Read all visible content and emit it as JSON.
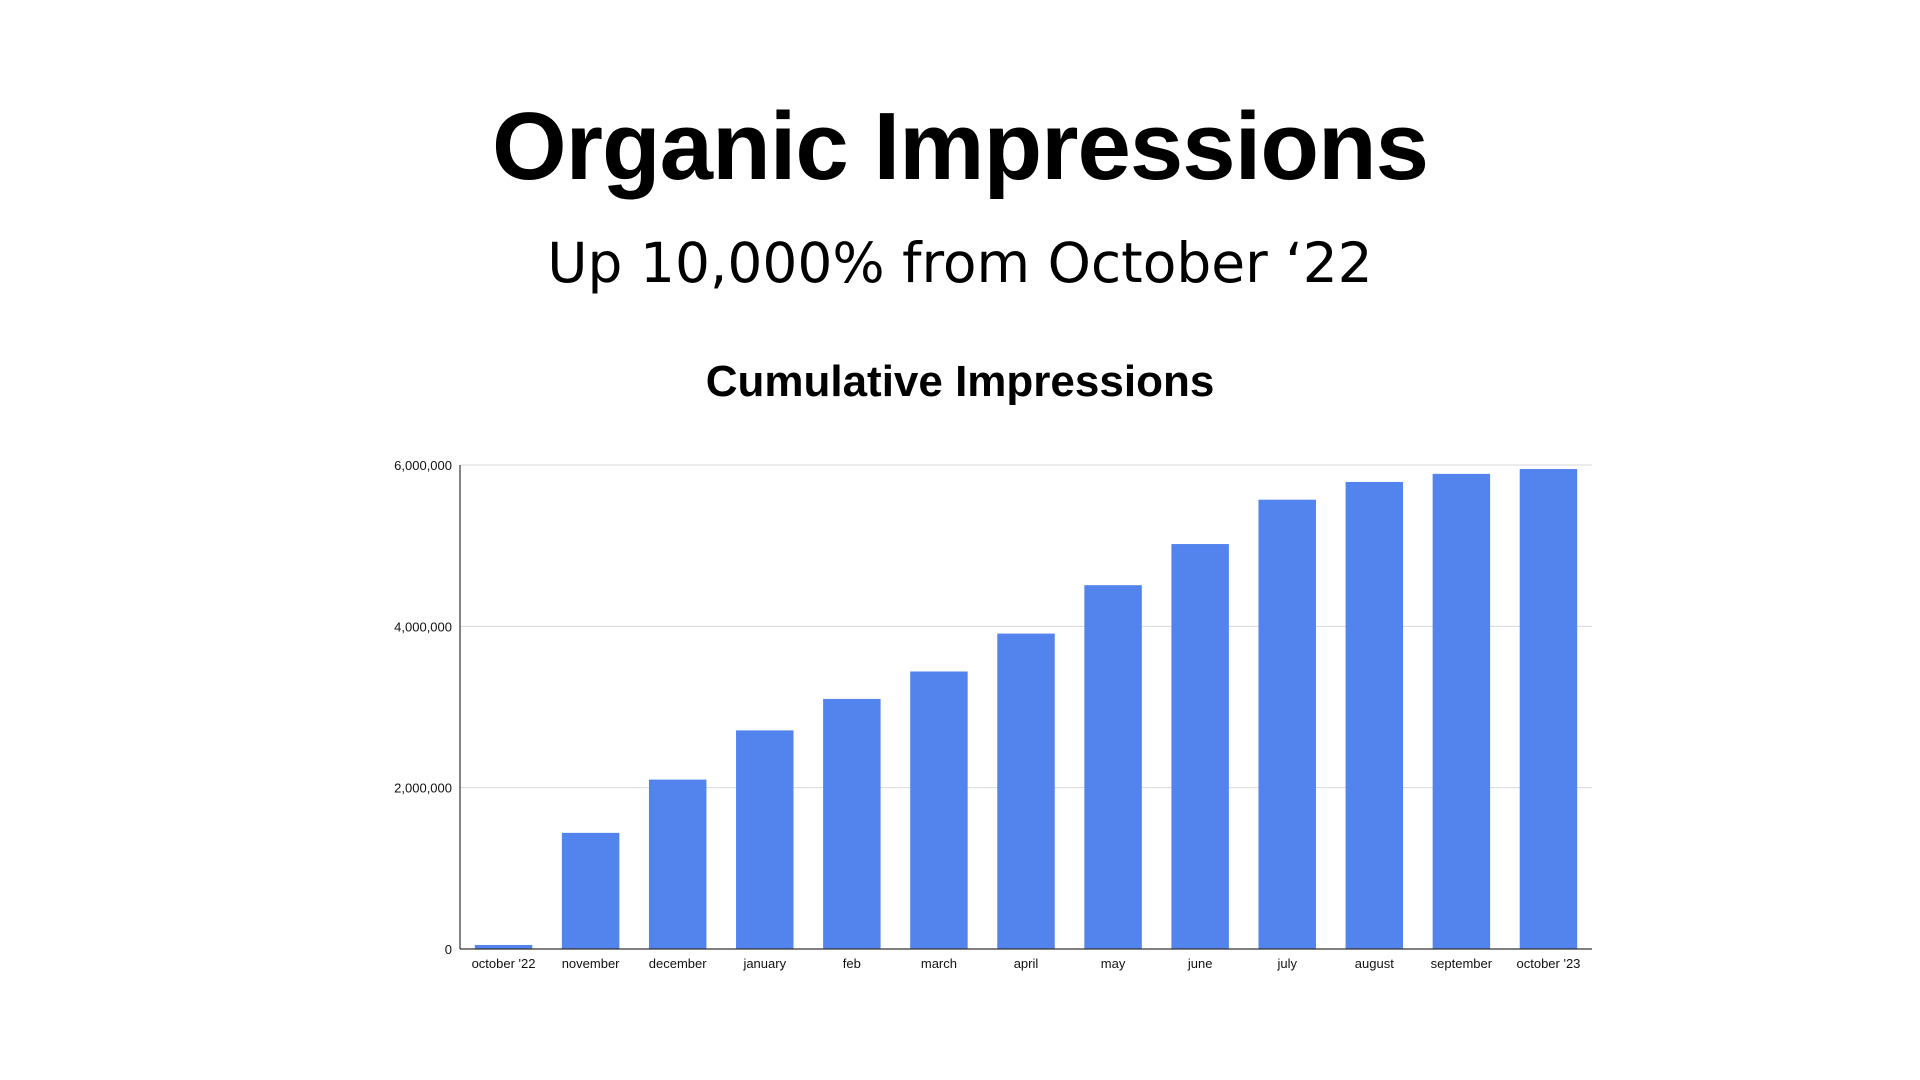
{
  "slide": {
    "title": "Organic Impressions",
    "subtitle": "Up 10,000% from October ‘22"
  },
  "chart_data": {
    "type": "bar",
    "title": "Cumulative Impressions",
    "xlabel": "",
    "ylabel": "",
    "categories": [
      "october '22",
      "november",
      "december",
      "january",
      "feb",
      "march",
      "april",
      "may",
      "june",
      "july",
      "august",
      "september",
      "october '23"
    ],
    "values": [
      50000,
      1440000,
      2100000,
      2710000,
      3100000,
      3440000,
      3910000,
      4510000,
      5020000,
      5570000,
      5790000,
      5890000,
      5950000
    ],
    "ylim": [
      0,
      6000000
    ],
    "yticks": [
      0,
      2000000,
      4000000,
      6000000
    ],
    "ytick_labels": [
      "0",
      "2,000,000",
      "4,000,000",
      "6,000,000"
    ],
    "bar_color": "#5383EC",
    "grid": true,
    "legend": "none"
  }
}
